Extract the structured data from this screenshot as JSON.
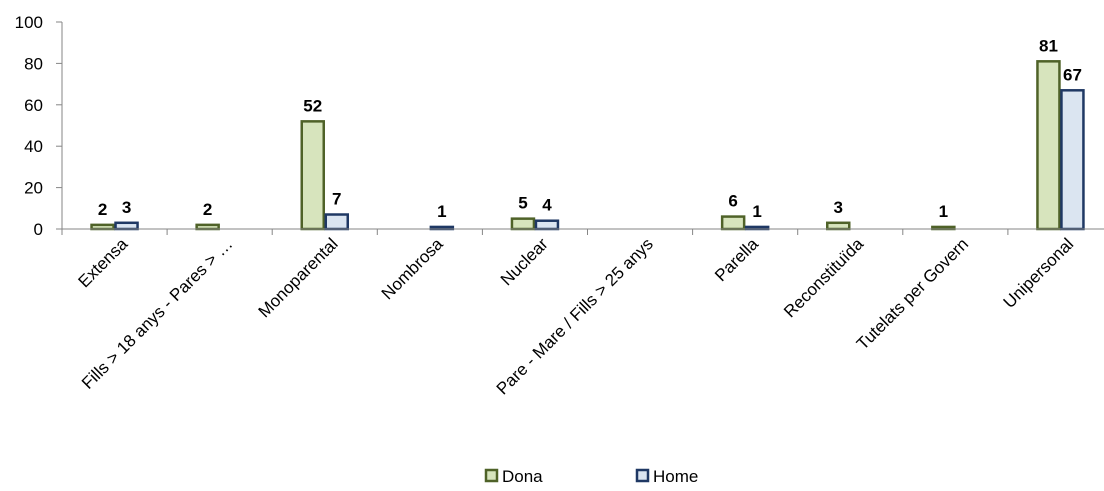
{
  "chart_data": {
    "type": "bar",
    "categories": [
      "Extensa",
      "Fills > 18 anys - Pares > …",
      "Monoparental",
      "Nombrosa",
      "Nuclear",
      "Pare - Mare / Fills > 25 anys",
      "Parella",
      "Reconstituïda",
      "Tutelats per Govern",
      "Unipersonal"
    ],
    "series": [
      {
        "name": "Dona",
        "values": [
          2,
          2,
          52,
          0,
          5,
          0,
          6,
          3,
          1,
          81
        ],
        "labels": [
          "2",
          "2",
          "52",
          "",
          "5",
          "",
          "6",
          "3",
          "1",
          "81"
        ],
        "fill": "#d7e4bd",
        "stroke": "#4f6228"
      },
      {
        "name": "Home",
        "values": [
          3,
          0,
          7,
          1,
          4,
          0,
          1,
          0,
          0,
          67
        ],
        "labels": [
          "3",
          "",
          "7",
          "1",
          "4",
          "",
          "1",
          "",
          "",
          "67"
        ],
        "fill": "#dbe5f1",
        "stroke": "#1f3864"
      }
    ],
    "ylim": [
      0,
      100
    ],
    "yticks": [
      "0",
      "20",
      "40",
      "60",
      "80",
      "100"
    ],
    "grid": false,
    "legend_position": "bottom"
  }
}
